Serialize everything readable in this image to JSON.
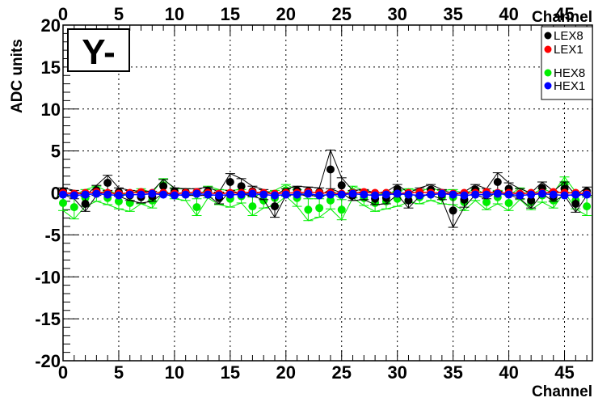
{
  "chart_data": {
    "type": "scatter",
    "title": "Y-",
    "xlabel": "Channel",
    "ylabel": "ADC units",
    "xlim": [
      0,
      47.5
    ],
    "ylim": [
      -20,
      20
    ],
    "x_ticks": [
      "0",
      "5",
      "10",
      "15",
      "20",
      "25",
      "30",
      "35",
      "40",
      "45"
    ],
    "y_ticks": [
      "20",
      "15",
      "10",
      "5",
      "0",
      "-5",
      "-10",
      "-15",
      "-20"
    ],
    "top_ticks": [
      "0",
      "5",
      "10",
      "15",
      "20",
      "25",
      "30",
      "35",
      "40",
      "45"
    ],
    "grid": true,
    "legend_position": "top-right",
    "series": [
      {
        "name": "LEX8",
        "color": "#000000",
        "x": [
          0,
          1,
          2,
          3,
          4,
          5,
          6,
          7,
          8,
          9,
          10,
          11,
          12,
          13,
          14,
          15,
          16,
          17,
          18,
          19,
          20,
          21,
          22,
          23,
          24,
          25,
          26,
          27,
          28,
          29,
          30,
          31,
          32,
          33,
          34,
          35,
          36,
          37,
          38,
          39,
          40,
          41,
          42,
          43,
          44,
          45,
          46,
          47
        ],
        "y": [
          0.2,
          -0.2,
          -1.3,
          0.3,
          1.2,
          0.1,
          -0.3,
          -0.5,
          -0.4,
          0.8,
          0.2,
          0.1,
          0.1,
          0.2,
          -0.6,
          1.3,
          0.8,
          0.2,
          -0.2,
          -1.6,
          0.1,
          0.3,
          0.2,
          0.1,
          2.8,
          0.9,
          -0.3,
          -0.2,
          -0.7,
          -0.6,
          0.4,
          -0.9,
          0.1,
          0.4,
          -0.2,
          -2.1,
          -0.8,
          0.4,
          -0.1,
          1.3,
          0.5,
          -0.1,
          -0.9,
          0.6,
          -0.4,
          0.5,
          -1.3,
          0.2
        ],
        "err": [
          0.4,
          0.5,
          0.9,
          0.6,
          0.9,
          0.5,
          0.6,
          0.7,
          0.6,
          0.8,
          0.4,
          0.4,
          0.4,
          0.5,
          0.7,
          1.0,
          0.9,
          0.6,
          0.6,
          1.3,
          0.4,
          0.5,
          0.5,
          0.5,
          2.3,
          0.9,
          0.6,
          0.6,
          0.7,
          0.7,
          0.6,
          0.9,
          0.5,
          0.6,
          0.6,
          2.0,
          0.9,
          0.6,
          0.6,
          1.1,
          0.7,
          0.6,
          0.9,
          0.7,
          0.6,
          0.8,
          1.0,
          0.5
        ]
      },
      {
        "name": "LEX1",
        "color": "#ff0000",
        "x": [
          0,
          1,
          2,
          3,
          4,
          5,
          6,
          7,
          8,
          9,
          10,
          11,
          12,
          13,
          14,
          15,
          16,
          17,
          18,
          19,
          20,
          21,
          22,
          23,
          24,
          25,
          26,
          27,
          28,
          29,
          30,
          31,
          32,
          33,
          34,
          35,
          36,
          37,
          38,
          39,
          40,
          41,
          42,
          43,
          44,
          45,
          46,
          47
        ],
        "y": [
          0.0,
          -0.1,
          0.0,
          0.1,
          0.0,
          -0.1,
          0.0,
          0.1,
          0.0,
          0.0,
          -0.1,
          0.0,
          0.1,
          0.0,
          -0.1,
          0.0,
          0.0,
          0.1,
          0.0,
          -0.1,
          0.0,
          0.0,
          0.1,
          0.0,
          0.0,
          -0.1,
          0.0,
          0.1,
          0.0,
          0.0,
          -0.1,
          0.0,
          0.1,
          0.0,
          0.0,
          -0.1,
          0.0,
          0.0,
          0.1,
          0.0,
          0.0,
          -0.1,
          0.0,
          0.0,
          0.1,
          0.0,
          0.0,
          -0.1
        ],
        "err": []
      },
      {
        "name": "HEX8",
        "color": "#00ee00",
        "x": [
          0,
          1,
          2,
          3,
          4,
          5,
          6,
          7,
          8,
          9,
          10,
          11,
          12,
          13,
          14,
          15,
          16,
          17,
          18,
          19,
          20,
          21,
          22,
          23,
          24,
          25,
          26,
          27,
          28,
          29,
          30,
          31,
          32,
          33,
          34,
          35,
          36,
          37,
          38,
          39,
          40,
          41,
          42,
          43,
          44,
          45,
          46,
          47
        ],
        "y": [
          -1.2,
          -1.7,
          -0.6,
          -0.1,
          -0.6,
          -1.0,
          -1.2,
          -0.4,
          -0.9,
          0.9,
          -0.1,
          -0.2,
          -1.7,
          0.1,
          -0.5,
          -0.7,
          -0.4,
          -1.6,
          -0.9,
          -0.6,
          0.3,
          -0.6,
          -2.0,
          -1.8,
          -0.9,
          -2.0,
          0.1,
          -0.6,
          -1.2,
          -1.0,
          -0.7,
          -0.3,
          -0.5,
          -0.2,
          -0.5,
          -0.5,
          -1.1,
          -0.2,
          -1.1,
          -0.5,
          -1.2,
          -0.1,
          -1.1,
          -0.3,
          -0.9,
          1.0,
          -0.9,
          -1.6
        ],
        "err": [
          0.9,
          1.4,
          1.0,
          0.9,
          0.8,
          0.9,
          1.0,
          0.9,
          0.9,
          0.8,
          0.6,
          0.7,
          1.0,
          0.7,
          0.9,
          1.0,
          0.8,
          1.1,
          0.9,
          0.9,
          0.7,
          1.0,
          1.3,
          1.1,
          1.0,
          1.2,
          0.7,
          0.9,
          1.0,
          0.9,
          0.9,
          0.8,
          0.8,
          0.7,
          0.8,
          0.9,
          1.0,
          0.7,
          0.9,
          0.8,
          0.9,
          0.7,
          0.9,
          0.8,
          0.9,
          0.9,
          1.0,
          1.1
        ]
      },
      {
        "name": "HEX1",
        "color": "#0000ff",
        "x": [
          0,
          1,
          2,
          3,
          4,
          5,
          6,
          7,
          8,
          9,
          10,
          11,
          12,
          13,
          14,
          15,
          16,
          17,
          18,
          19,
          20,
          21,
          22,
          23,
          24,
          25,
          26,
          27,
          28,
          29,
          30,
          31,
          32,
          33,
          34,
          35,
          36,
          37,
          38,
          39,
          40,
          41,
          42,
          43,
          44,
          45,
          46,
          47
        ],
        "y": [
          -0.2,
          -0.3,
          -0.2,
          -0.1,
          -0.2,
          -0.3,
          -0.2,
          -0.2,
          -0.1,
          -0.2,
          -0.3,
          -0.2,
          -0.1,
          -0.2,
          -0.3,
          -0.2,
          -0.2,
          -0.1,
          -0.2,
          -0.3,
          -0.2,
          -0.2,
          -0.1,
          -0.3,
          -0.2,
          -0.2,
          -0.1,
          -0.2,
          -0.3,
          -0.2,
          -0.1,
          -0.2,
          -0.3,
          -0.2,
          -0.1,
          -0.2,
          -0.3,
          -0.2,
          -0.2,
          -0.1,
          -0.2,
          -0.3,
          -0.2,
          -0.1,
          -0.2,
          -0.3,
          -0.2,
          -0.2
        ],
        "err": []
      }
    ]
  }
}
